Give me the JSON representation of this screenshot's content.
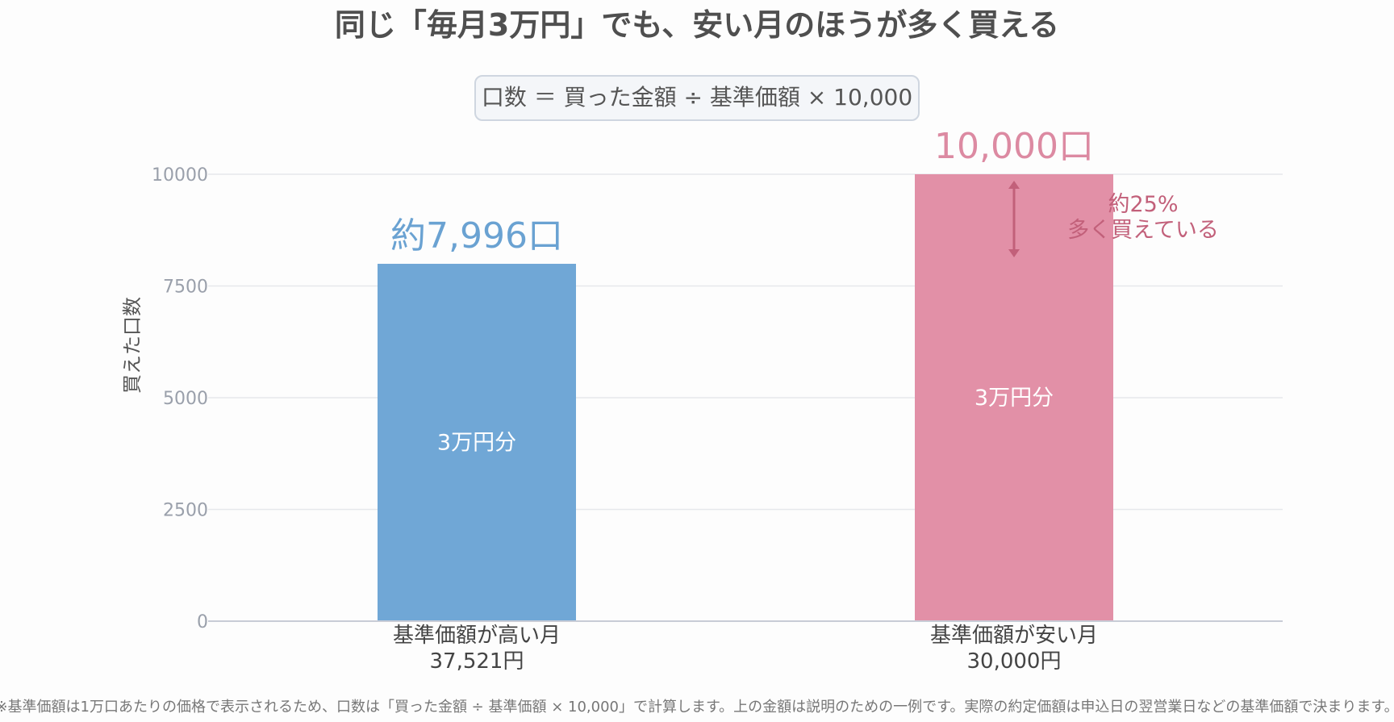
{
  "chart_data": {
    "type": "bar",
    "title": "同じ「毎月3万円」でも、安い月のほうが多く買える",
    "formula": "口数 ＝ 買った金額 ÷ 基準価額 × 10,000",
    "ylabel": "買えた口数",
    "ylim": [
      0,
      10000
    ],
    "yticks": [
      0,
      2500,
      5000,
      7500,
      10000
    ],
    "grid": true,
    "categories": [
      {
        "line1": "基準価額が高い月",
        "line2": "37,521円"
      },
      {
        "line1": "基準価額が安い月",
        "line2": "30,000円"
      }
    ],
    "values": [
      7996,
      10000
    ],
    "colors": [
      "#70a7d6",
      "#e290a7"
    ],
    "value_labels": [
      "約7,996口",
      "10,000口"
    ],
    "value_label_colors": [
      "#6aa2d2",
      "#dc8aa2"
    ],
    "bar_inner_labels": [
      "3万円分",
      "3万円分"
    ],
    "annotation": {
      "line1": "約25%",
      "line2": "多く買えている",
      "from_value": 10000,
      "to_value": 7996,
      "color": "#c2607a"
    },
    "footnote": "※基準価額は1万口あたりの価格で表示されるため、口数は「買った金額 ÷ 基準価額 × 10,000」で計算します。上の金額は説明のための一例です。実際の約定価額は申込日の翌営業日などの基準価額で決まります。"
  }
}
